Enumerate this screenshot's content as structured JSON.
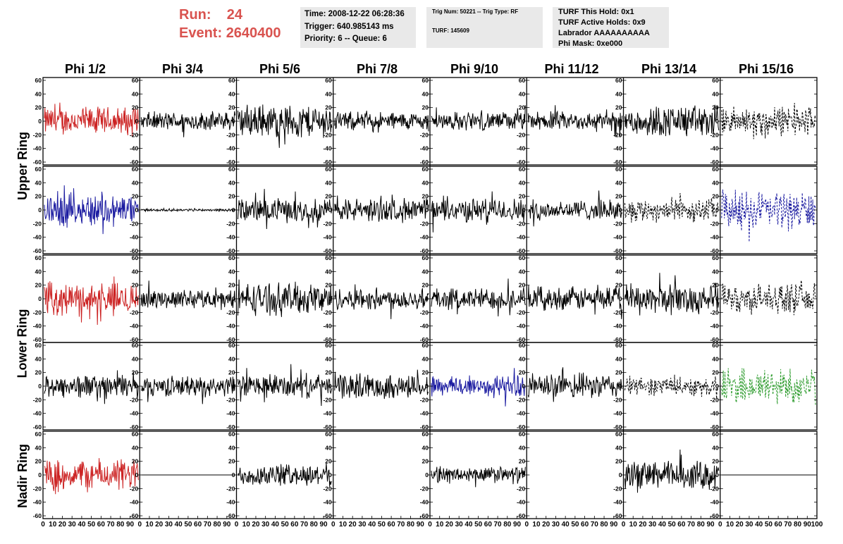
{
  "header": {
    "run_label": "Run:",
    "run_value": "24",
    "event_label": "Event:",
    "event_value": "2640400",
    "time_line": "Time: 2008-12-22 06:28:36",
    "trigger_line": "Trigger: 640.985143 ms",
    "priority_line": "Priority: 6 -- Queue: 6",
    "trig_num_line": "Trig Num: 50221 -- Trig Type: RF",
    "turf_line": "TURF: 145609",
    "turf_this_hold": "TURF This Hold: 0x1",
    "turf_active_holds": "TURF Active Holds: 0x9",
    "labrador": "Labrador AAAAAAAAAA",
    "phi_mask": "Phi Mask: 0xe000"
  },
  "columns": [
    "Phi 1/2",
    "Phi 3/4",
    "Phi 5/6",
    "Phi 7/8",
    "Phi 9/10",
    "Phi 11/12",
    "Phi 13/14",
    "Phi 15/16"
  ],
  "rows": [
    "Upper Ring",
    "Lower Ring",
    "Nadir Ring"
  ],
  "colors": {
    "header_red": "#d9534f",
    "info_bg": "#e9e9e9",
    "trace_black": "#000000",
    "trace_red": "#cc2222",
    "trace_blue": "#1a1aa0",
    "trace_green": "#2a9a2a"
  },
  "chart_data": {
    "type": "line",
    "grid": false,
    "x_ticks": [
      "0",
      "10",
      "20",
      "30",
      "40",
      "50",
      "60",
      "70",
      "80",
      "90",
      "100"
    ],
    "y_ticks": [
      "60",
      "40",
      "20",
      "0",
      "-20",
      "-40",
      "-60"
    ],
    "xlim": [
      0,
      100
    ],
    "ylim": [
      -60,
      60
    ],
    "panels": [
      {
        "row": 0,
        "col": 0,
        "color": "red",
        "amplitude": 17,
        "style": "solid"
      },
      {
        "row": 0,
        "col": 1,
        "color": "black",
        "amplitude": 11,
        "style": "solid"
      },
      {
        "row": 0,
        "col": 2,
        "color": "black",
        "amplitude": 20,
        "style": "solid"
      },
      {
        "row": 0,
        "col": 3,
        "color": "black",
        "amplitude": 11,
        "style": "solid"
      },
      {
        "row": 0,
        "col": 4,
        "color": "black",
        "amplitude": 11,
        "style": "solid"
      },
      {
        "row": 0,
        "col": 5,
        "color": "black",
        "amplitude": 11,
        "style": "solid"
      },
      {
        "row": 0,
        "col": 6,
        "color": "black",
        "amplitude": 19,
        "style": "solid"
      },
      {
        "row": 0,
        "col": 7,
        "color": "black",
        "amplitude": 18,
        "style": "dashed"
      },
      {
        "row": 1,
        "col": 0,
        "color": "blue",
        "amplitude": 20,
        "style": "solid"
      },
      {
        "row": 1,
        "col": 1,
        "color": "black",
        "amplitude": 1.5,
        "style": "solid"
      },
      {
        "row": 1,
        "col": 2,
        "color": "black",
        "amplitude": 14,
        "style": "solid"
      },
      {
        "row": 1,
        "col": 3,
        "color": "black",
        "amplitude": 14,
        "style": "solid"
      },
      {
        "row": 1,
        "col": 4,
        "color": "black",
        "amplitude": 14,
        "style": "solid"
      },
      {
        "row": 1,
        "col": 5,
        "color": "black",
        "amplitude": 12,
        "style": "solid"
      },
      {
        "row": 1,
        "col": 6,
        "color": "black",
        "amplitude": 14,
        "style": "dashed"
      },
      {
        "row": 1,
        "col": 7,
        "color": "blue",
        "amplitude": 23,
        "style": "dashed"
      },
      {
        "row": 2,
        "col": 0,
        "color": "red",
        "amplitude": 19,
        "style": "solid"
      },
      {
        "row": 2,
        "col": 1,
        "color": "black",
        "amplitude": 11,
        "style": "solid"
      },
      {
        "row": 2,
        "col": 2,
        "color": "black",
        "amplitude": 19,
        "style": "solid"
      },
      {
        "row": 2,
        "col": 3,
        "color": "black",
        "amplitude": 13,
        "style": "solid"
      },
      {
        "row": 2,
        "col": 4,
        "color": "black",
        "amplitude": 13,
        "style": "solid"
      },
      {
        "row": 2,
        "col": 5,
        "color": "black",
        "amplitude": 14,
        "style": "solid"
      },
      {
        "row": 2,
        "col": 6,
        "color": "black",
        "amplitude": 18,
        "style": "solid"
      },
      {
        "row": 2,
        "col": 7,
        "color": "black",
        "amplitude": 17,
        "style": "dashed"
      },
      {
        "row": 3,
        "col": 0,
        "color": "black",
        "amplitude": 14,
        "style": "solid"
      },
      {
        "row": 3,
        "col": 1,
        "color": "black",
        "amplitude": 12,
        "style": "solid"
      },
      {
        "row": 3,
        "col": 2,
        "color": "black",
        "amplitude": 14,
        "style": "solid"
      },
      {
        "row": 3,
        "col": 3,
        "color": "black",
        "amplitude": 15,
        "style": "solid"
      },
      {
        "row": 3,
        "col": 4,
        "color": "blue",
        "amplitude": 13,
        "style": "solid"
      },
      {
        "row": 3,
        "col": 5,
        "color": "black",
        "amplitude": 15,
        "style": "solid"
      },
      {
        "row": 3,
        "col": 6,
        "color": "black",
        "amplitude": 11,
        "style": "dashed"
      },
      {
        "row": 3,
        "col": 7,
        "color": "green",
        "amplitude": 22,
        "style": "dashed"
      },
      {
        "row": 4,
        "col": 0,
        "color": "red",
        "amplitude": 19,
        "style": "solid"
      },
      {
        "row": 4,
        "col": 1,
        "color": "black",
        "amplitude": 0,
        "style": "solid"
      },
      {
        "row": 4,
        "col": 2,
        "color": "black",
        "amplitude": 13,
        "style": "solid"
      },
      {
        "row": 4,
        "col": 3,
        "color": "none",
        "amplitude": 0,
        "style": "solid"
      },
      {
        "row": 4,
        "col": 4,
        "color": "black",
        "amplitude": 10,
        "style": "solid"
      },
      {
        "row": 4,
        "col": 5,
        "color": "none",
        "amplitude": 0,
        "style": "solid"
      },
      {
        "row": 4,
        "col": 6,
        "color": "black",
        "amplitude": 17,
        "style": "solid"
      },
      {
        "row": 4,
        "col": 7,
        "color": "black",
        "amplitude": 0,
        "style": "solid"
      }
    ]
  }
}
